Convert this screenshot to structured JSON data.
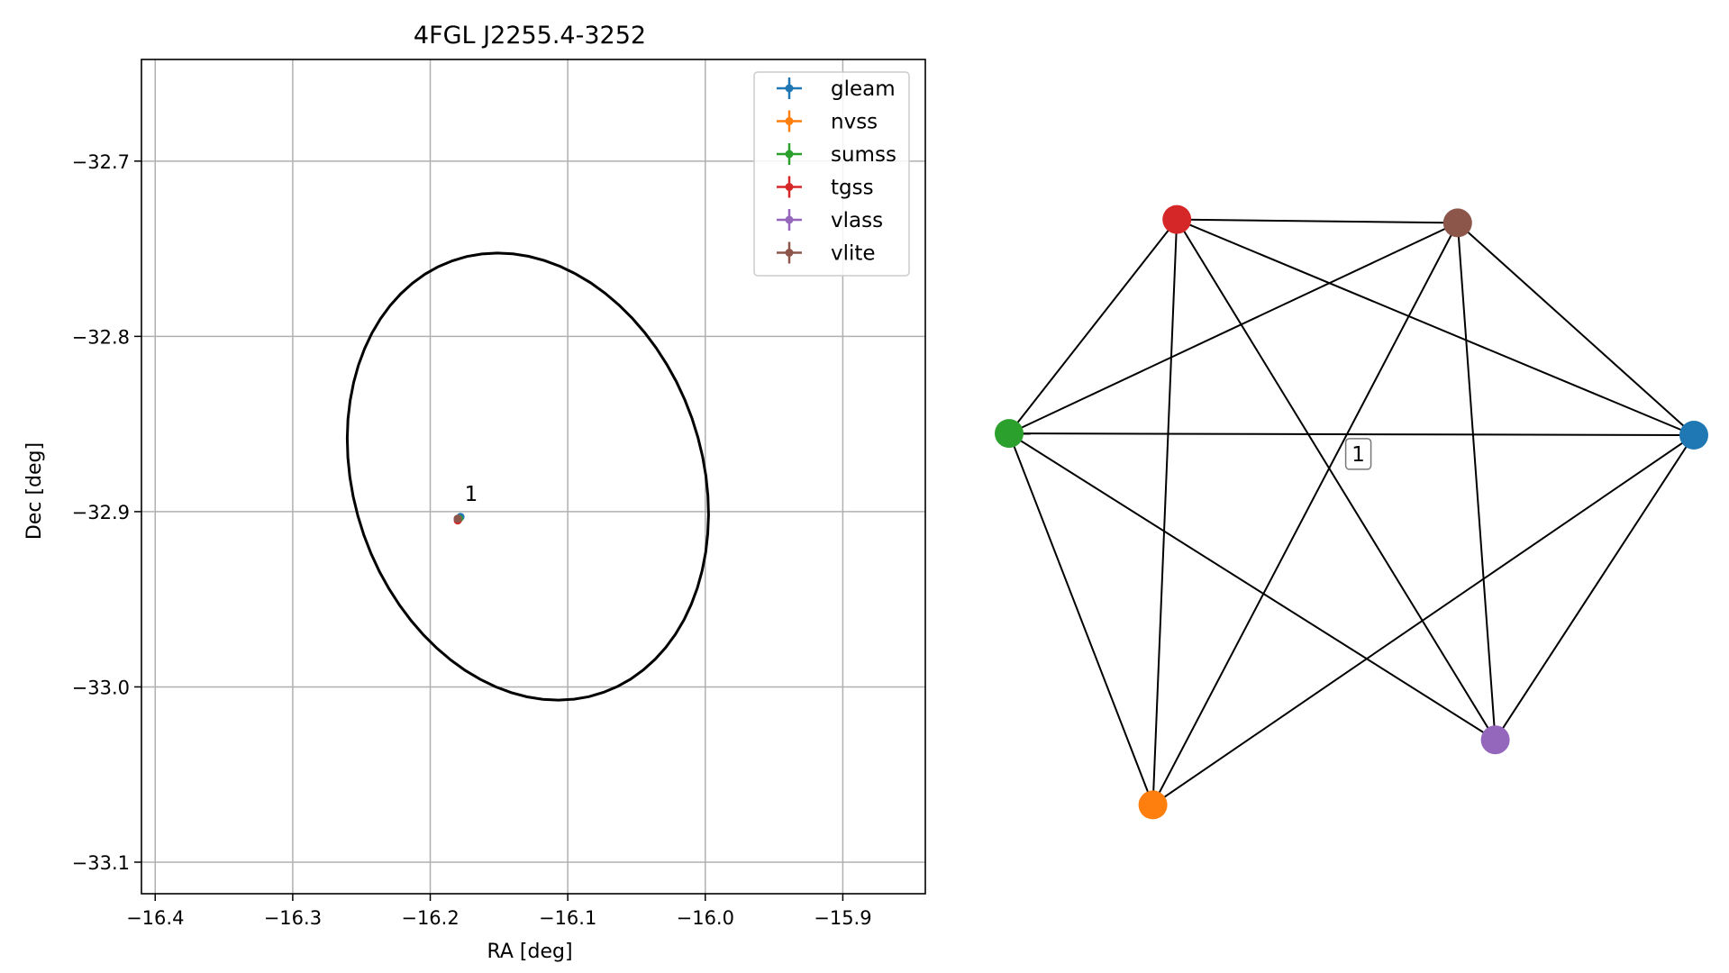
{
  "chart_data": [
    {
      "type": "scatter",
      "title": "4FGL J2255.4-3252",
      "xlabel": "RA [deg]",
      "ylabel": "Dec [deg]",
      "xlim": [
        -16.41,
        -15.84
      ],
      "ylim": [
        -33.118,
        -32.642
      ],
      "xticks": [
        -16.4,
        -16.3,
        -16.2,
        -16.1,
        -16.0,
        -15.9
      ],
      "yticks": [
        -32.7,
        -32.8,
        -32.9,
        -33.0,
        -33.1
      ],
      "xtick_labels": [
        "−16.4",
        "−16.3",
        "−16.2",
        "−16.1",
        "−16.0",
        "−15.9"
      ],
      "ytick_labels": [
        "−32.7",
        "−32.8",
        "−32.9",
        "−33.0",
        "−33.1"
      ],
      "grid": true,
      "legend_position": "upper-right",
      "series": [
        {
          "name": "gleam",
          "color": "#1f77b4",
          "x": [
            -16.178
          ],
          "y": [
            -32.903
          ]
        },
        {
          "name": "nvss",
          "color": "#ff7f0e",
          "x": [
            -16.18
          ],
          "y": [
            -32.904
          ]
        },
        {
          "name": "sumss",
          "color": "#2ca02c",
          "x": [
            -16.179
          ],
          "y": [
            -32.904
          ]
        },
        {
          "name": "tgss",
          "color": "#d62728",
          "x": [
            -16.18
          ],
          "y": [
            -32.905
          ]
        },
        {
          "name": "vlass",
          "color": "#9467bd",
          "x": [
            -16.18
          ],
          "y": [
            -32.904
          ]
        },
        {
          "name": "vlite",
          "color": "#8c564b",
          "x": [
            -16.18
          ],
          "y": [
            -32.904
          ]
        }
      ],
      "ellipse": {
        "center_x": -16.129,
        "center_y": -32.88,
        "semi_major": 0.14,
        "semi_minor": 0.118,
        "angle_deg": -40,
        "color": "#000000"
      },
      "annotations": [
        {
          "text": "1",
          "x": -16.175,
          "y": -32.897
        }
      ]
    },
    {
      "type": "network",
      "nodes": [
        {
          "id": "gleam",
          "color": "#1f77b4",
          "x": 1.0,
          "y": 0.0
        },
        {
          "id": "tgss",
          "color": "#d62728",
          "x": -0.51,
          "y": 0.63
        },
        {
          "id": "vlite",
          "color": "#8c564b",
          "x": 0.31,
          "y": 0.62
        },
        {
          "id": "sumss",
          "color": "#2ca02c",
          "x": -1.0,
          "y": 0.005
        },
        {
          "id": "vlass",
          "color": "#9467bd",
          "x": 0.42,
          "y": -0.89
        },
        {
          "id": "nvss",
          "color": "#ff7f0e",
          "x": -0.58,
          "y": -1.08
        }
      ],
      "edges": [
        [
          "gleam",
          "tgss"
        ],
        [
          "gleam",
          "vlite"
        ],
        [
          "gleam",
          "sumss"
        ],
        [
          "gleam",
          "vlass"
        ],
        [
          "gleam",
          "nvss"
        ],
        [
          "tgss",
          "vlite"
        ],
        [
          "tgss",
          "sumss"
        ],
        [
          "tgss",
          "vlass"
        ],
        [
          "tgss",
          "nvss"
        ],
        [
          "vlite",
          "sumss"
        ],
        [
          "vlite",
          "vlass"
        ],
        [
          "vlite",
          "nvss"
        ],
        [
          "sumss",
          "vlass"
        ],
        [
          "sumss",
          "nvss"
        ]
      ],
      "label": {
        "text": "1",
        "x": 0.02,
        "y": -0.055
      }
    }
  ]
}
